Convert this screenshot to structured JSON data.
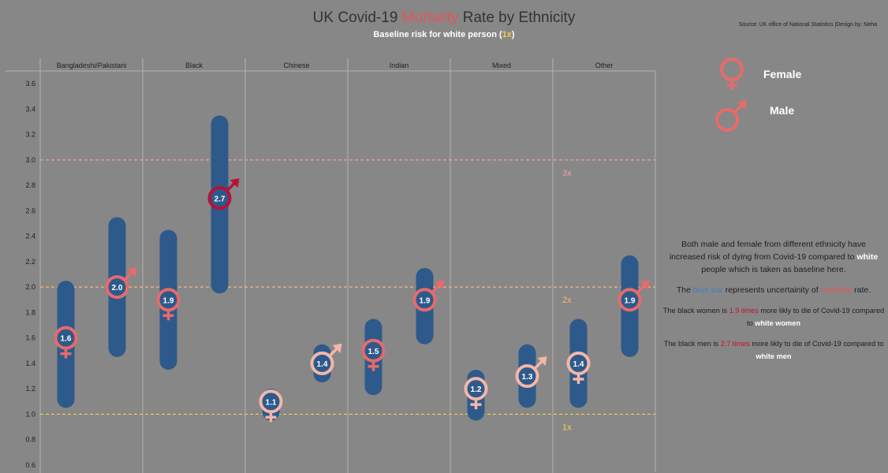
{
  "title": {
    "prefix": "UK Covid-19 ",
    "accent": "Mortality",
    "suffix": " Rate by Ethnicity"
  },
  "subtitle": {
    "text": "Baseline risk for white person (",
    "highlight": "1x",
    "close": ")"
  },
  "source": "Source: UK office of National Statistics |Design by: Neha",
  "legend": {
    "female": "Female",
    "male": "Male"
  },
  "notes": {
    "p1": {
      "a": "Both male and female from different ethnicity have increased risk of dying from Covid-19 compared to ",
      "b": "white",
      "c": " people which is taken as baseline here."
    },
    "p2": {
      "a": "The ",
      "b": "blue bar",
      "c": " represents uncertainity of ",
      "d": "mortality",
      "e": " rate."
    },
    "p3": {
      "a": "The black women is ",
      "b": "1.9 times",
      "c": " more likly to die of Covid-19 compared to ",
      "d": "white women"
    },
    "p4": {
      "a": "The black men is ",
      "b": "2.7 times",
      "c": " more likly to die of Covid-19 compared to ",
      "d": "white men"
    }
  },
  "colors": {
    "background": "#878787",
    "bar": "#2d5a8b",
    "female_low": "#f4b6a8",
    "female_mid": "#e86a6a",
    "male_high": "#b5123a",
    "ref_1x": "#f2d04a",
    "ref_2x": "#f5b77a",
    "ref_3x": "#f0a0a0"
  },
  "chart_data": {
    "type": "scatter",
    "title": "UK Covid-19 Mortality Rate by Ethnicity",
    "categories": [
      "Bangladeshi/Pakistani",
      "Black",
      "Chinese",
      "Indian",
      "Mixed",
      "Other"
    ],
    "series": [
      {
        "name": "Female",
        "values": [
          1.6,
          1.9,
          1.1,
          1.5,
          1.2,
          1.4
        ],
        "range_low": [
          1.05,
          1.35,
          0.95,
          1.15,
          0.95,
          1.05
        ],
        "range_high": [
          2.05,
          2.45,
          1.2,
          1.75,
          1.35,
          1.75
        ]
      },
      {
        "name": "Male",
        "values": [
          2.0,
          2.7,
          1.4,
          1.9,
          1.3,
          1.9
        ],
        "range_low": [
          1.45,
          1.95,
          1.25,
          1.55,
          1.05,
          1.45
        ],
        "range_high": [
          2.55,
          3.35,
          1.55,
          2.15,
          1.55,
          2.25
        ]
      }
    ],
    "y_ticks": [
      "0.6",
      "0.8",
      "1.0",
      "1.2",
      "1.4",
      "1.6",
      "1.8",
      "2.0",
      "2.2",
      "2.4",
      "2.6",
      "2.8",
      "3.0",
      "3.2",
      "3.4",
      "3.6"
    ],
    "ylim": [
      0.55,
      3.7
    ],
    "reference_lines": [
      {
        "label": "1x",
        "value": 1.0
      },
      {
        "label": "2x",
        "value": 2.0
      },
      {
        "label": "3x",
        "value": 3.0
      }
    ],
    "grid": false,
    "legend_position": "top-right"
  }
}
